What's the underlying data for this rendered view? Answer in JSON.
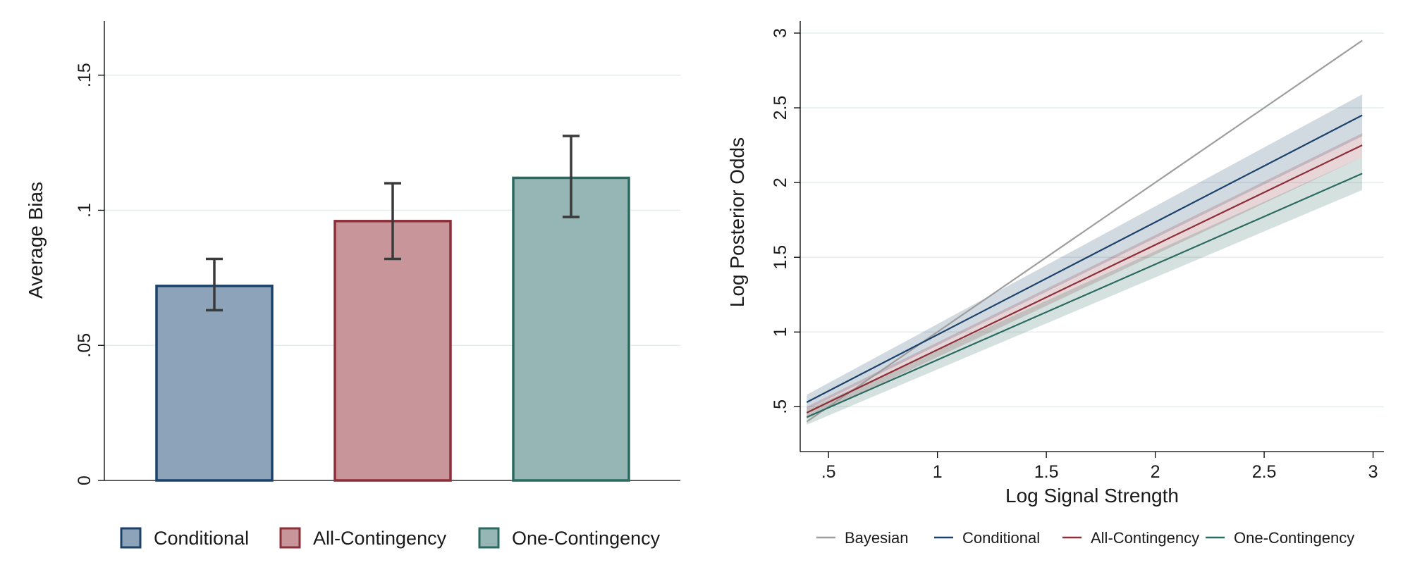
{
  "chart_data": [
    {
      "type": "bar",
      "ylabel": "Average Bias",
      "xlabel": "",
      "ylim": [
        0,
        0.17
      ],
      "yticks": [
        0,
        0.05,
        0.1,
        0.15
      ],
      "ytick_labels": [
        "0",
        ".05",
        ".1",
        ".15"
      ],
      "grid": true,
      "legend_position": "bottom",
      "categories": [
        "Conditional",
        "All-Contingency",
        "One-Contingency"
      ],
      "values": [
        0.072,
        0.096,
        0.112
      ],
      "error_low": [
        0.063,
        0.082,
        0.0975
      ],
      "error_high": [
        0.082,
        0.11,
        0.1275
      ],
      "colors": {
        "fill": [
          "#8ca3b9",
          "#c8969a",
          "#96b6b5"
        ],
        "edge": [
          "#1b426b",
          "#8c2f39",
          "#2b6a60"
        ],
        "error": "#3a3a3a"
      }
    },
    {
      "type": "line",
      "xlabel": "Log Signal Strength",
      "ylabel": "Log Posterior Odds",
      "xlim": [
        0.37,
        3.05
      ],
      "ylim": [
        0.2,
        3.08
      ],
      "xticks": [
        0.5,
        1,
        1.5,
        2,
        2.5,
        3
      ],
      "xtick_labels": [
        ".5",
        "1",
        "1.5",
        "2",
        "2.5",
        "3"
      ],
      "yticks": [
        0.5,
        1,
        1.5,
        2,
        2.5,
        3
      ],
      "ytick_labels": [
        ".5",
        "1",
        "1.5",
        "2",
        "2.5",
        "3"
      ],
      "grid": true,
      "legend_position": "bottom",
      "x": [
        0.4,
        2.95
      ],
      "series": [
        {
          "name": "Bayesian",
          "color": "#9e9e9e",
          "values": [
            0.4,
            2.95
          ],
          "ci_low": null,
          "ci_high": null
        },
        {
          "name": "Conditional",
          "color": "#1b426b",
          "values": [
            0.53,
            2.45
          ],
          "ci_low": [
            0.48,
            2.31
          ],
          "ci_high": [
            0.58,
            2.59
          ]
        },
        {
          "name": "All-Contingency",
          "color": "#8c2f39",
          "values": [
            0.46,
            2.25
          ],
          "ci_low": [
            0.42,
            2.17
          ],
          "ci_high": [
            0.5,
            2.33
          ]
        },
        {
          "name": "One-Contingency",
          "color": "#2b6a60",
          "values": [
            0.43,
            2.06
          ],
          "ci_low": [
            0.38,
            1.95
          ],
          "ci_high": [
            0.48,
            2.17
          ]
        }
      ]
    }
  ]
}
